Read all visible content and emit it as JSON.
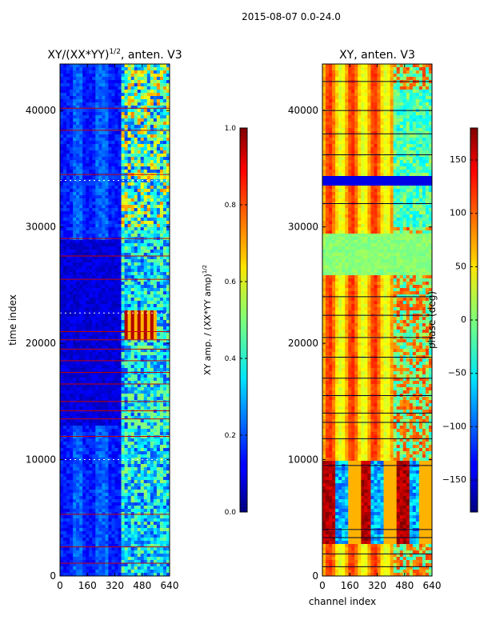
{
  "figure": {
    "suptitle": "2015-08-07 0.0-24.0"
  },
  "chart_data": [
    {
      "type": "heatmap",
      "title": "XY/(XX*YY)^{1/2}, anten. V3",
      "title_main": "XY/(XX*YY)",
      "title_exp": "1/2",
      "title_tail": ", anten. V3",
      "xlabel": "",
      "ylabel": "time index",
      "xlim": [
        0,
        640
      ],
      "ylim": [
        0,
        44000
      ],
      "xticks": [
        0,
        160,
        320,
        480,
        640
      ],
      "yticks": [
        0,
        10000,
        20000,
        30000,
        40000
      ],
      "colormap": "jet",
      "colorbar": {
        "label": "XY amp. / (XX*YY amp)^{1/2}",
        "label_main": "XY amp. / (XX*YY amp)",
        "label_exp": "1/2",
        "range": [
          0.0,
          1.0
        ],
        "ticks": [
          "0.0",
          "0.2",
          "0.4",
          "0.6",
          "0.8",
          "1.0"
        ],
        "tick_values": [
          0.0,
          0.2,
          0.4,
          0.6,
          0.8,
          1.0
        ]
      }
    },
    {
      "type": "heatmap",
      "title": "XY, anten. V3",
      "xlabel": "channel index",
      "ylabel": "",
      "xlim": [
        0,
        640
      ],
      "ylim": [
        0,
        44000
      ],
      "xticks": [
        0,
        160,
        320,
        480,
        640
      ],
      "yticks": [
        0,
        10000,
        20000,
        30000,
        40000
      ],
      "colormap": "jet",
      "colorbar": {
        "label": "phase (deg)",
        "range": [
          -180,
          180
        ],
        "ticks": [
          "−150",
          "−100",
          "−50",
          "0",
          "50",
          "100",
          "150"
        ],
        "tick_values": [
          -150,
          -100,
          -50,
          0,
          50,
          100,
          150
        ]
      }
    }
  ]
}
